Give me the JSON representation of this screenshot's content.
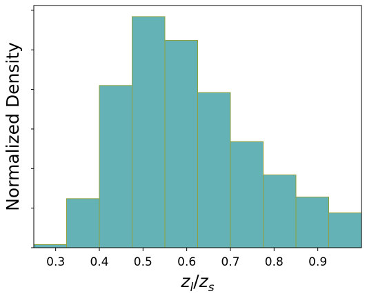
{
  "chart_data": {
    "type": "bar",
    "subtype": "histogram",
    "xlabel": "z_l/z_s",
    "ylabel": "Normalized Density",
    "title": "",
    "xlim": [
      0.25,
      1.0
    ],
    "ylim": [
      0,
      3.06
    ],
    "y_tick_labels_shown": false,
    "grid": false,
    "bin_edges": [
      0.25,
      0.325,
      0.4,
      0.475,
      0.55,
      0.625,
      0.7,
      0.775,
      0.85,
      0.925,
      1.0
    ],
    "values": [
      0.04,
      0.62,
      2.05,
      2.92,
      2.62,
      1.96,
      1.34,
      0.92,
      0.64,
      0.44
    ],
    "x_ticks": [
      0.3,
      0.4,
      0.5,
      0.6,
      0.7,
      0.8,
      0.9
    ],
    "x_tick_labels": [
      "0.3",
      "0.4",
      "0.5",
      "0.6",
      "0.7",
      "0.8",
      "0.9"
    ],
    "y_ticks": [
      0,
      0.5,
      1.0,
      1.5,
      2.0,
      2.5,
      3.0
    ],
    "colors": {
      "bar_fill": "#64b2b5",
      "bar_edge": "#8fa03c",
      "axis": "#000000"
    }
  }
}
